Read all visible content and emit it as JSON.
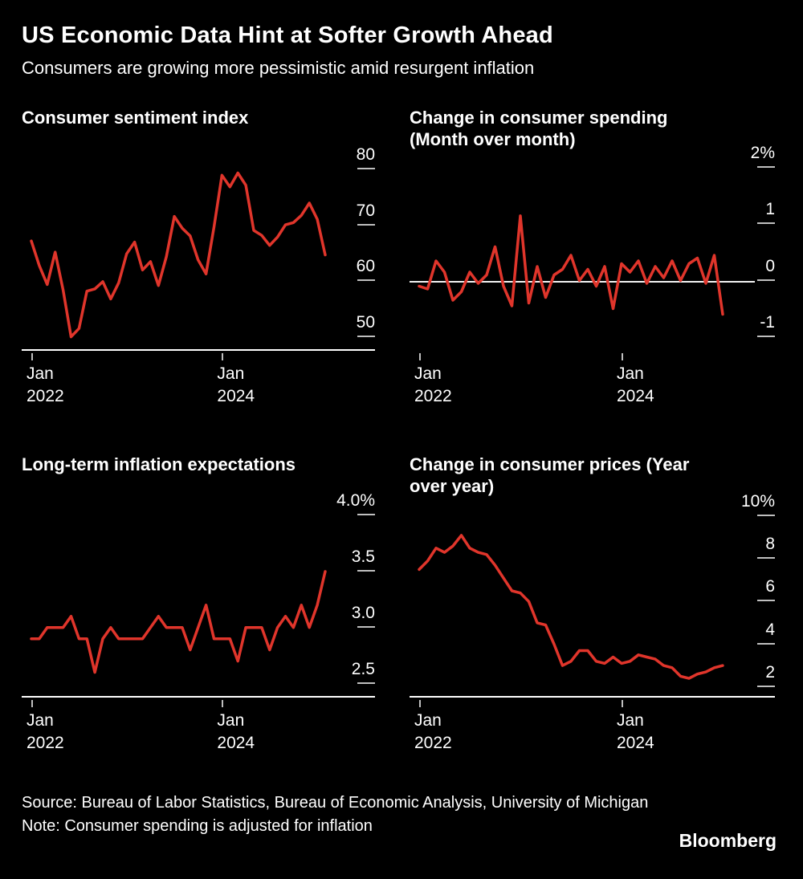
{
  "header": {
    "title": "US Economic Data Hint at Softer Growth Ahead",
    "subtitle": "Consumers are growing more pessimistic amid resurgent inflation"
  },
  "colors": {
    "background": "#000000",
    "line": "#E0352B",
    "text": "#FFFFFF",
    "axis": "#FFFFFF",
    "tick_mark": "#BFBFBF"
  },
  "chart_data": [
    {
      "type": "line",
      "title": "Consumer sentiment index",
      "title_lines": [
        "Consumer sentiment index"
      ],
      "x_start": "Jan 2022",
      "x_frequency": "monthly",
      "ylim": [
        47.5,
        83.5
      ],
      "baseline": true,
      "zero_line": false,
      "y_ticks": [
        {
          "label": "80",
          "value": 80
        },
        {
          "label": "70",
          "value": 70
        },
        {
          "label": "60",
          "value": 60
        },
        {
          "label": "50",
          "value": 50
        }
      ],
      "x_ticks": [
        {
          "line1": "Jan",
          "line2": "2022",
          "month_index": 0
        },
        {
          "line1": "Jan",
          "line2": "2024",
          "month_index": 24
        }
      ],
      "values": [
        67.2,
        62.8,
        59.4,
        65.2,
        58.4,
        50.0,
        51.5,
        58.2,
        58.6,
        59.9,
        56.8,
        59.7,
        64.9,
        67.0,
        62.0,
        63.5,
        59.2,
        64.4,
        71.6,
        69.5,
        68.1,
        63.8,
        61.3,
        69.7,
        79.0,
        76.9,
        79.4,
        77.2,
        69.1,
        68.2,
        66.4,
        67.9,
        70.1,
        70.5,
        71.8,
        74.0,
        71.1,
        64.7
      ]
    },
    {
      "type": "line",
      "title": "Change in consumer spending (Month over month)",
      "title_lines": [
        "Change in consumer spending",
        "(Month over month)"
      ],
      "x_start": "Jan 2022",
      "x_frequency": "monthly",
      "ylim": [
        -1.25,
        2.32
      ],
      "baseline": false,
      "zero_line": true,
      "y_ticks": [
        {
          "label": "2%",
          "value": 2
        },
        {
          "label": "1",
          "value": 1
        },
        {
          "label": "0",
          "value": 0
        },
        {
          "label": "-1",
          "value": -1
        }
      ],
      "x_ticks": [
        {
          "line1": "Jan",
          "line2": "2022",
          "month_index": 0
        },
        {
          "line1": "Jan",
          "line2": "2024",
          "month_index": 24
        }
      ],
      "values": [
        -0.1,
        -0.15,
        0.35,
        0.15,
        -0.35,
        -0.2,
        0.15,
        -0.05,
        0.1,
        0.6,
        -0.1,
        -0.45,
        1.15,
        -0.4,
        0.25,
        -0.3,
        0.1,
        0.2,
        0.45,
        0.0,
        0.2,
        -0.1,
        0.25,
        -0.5,
        0.3,
        0.15,
        0.35,
        -0.05,
        0.25,
        0.05,
        0.35,
        0.0,
        0.3,
        0.4,
        -0.05,
        0.45,
        -0.6
      ]
    },
    {
      "type": "line",
      "title": "Long-term inflation expectations",
      "title_lines": [
        "Long-term inflation expectations"
      ],
      "x_start": "Jan 2022",
      "x_frequency": "monthly",
      "ylim": [
        2.375,
        4.165
      ],
      "baseline": true,
      "zero_line": false,
      "y_ticks": [
        {
          "label": "4.0%",
          "value": 4.0
        },
        {
          "label": "3.5",
          "value": 3.5
        },
        {
          "label": "3.0",
          "value": 3.0
        },
        {
          "label": "2.5",
          "value": 2.5
        }
      ],
      "x_ticks": [
        {
          "line1": "Jan",
          "line2": "2022",
          "month_index": 0
        },
        {
          "line1": "Jan",
          "line2": "2024",
          "month_index": 24
        }
      ],
      "values": [
        2.9,
        2.9,
        3.0,
        3.0,
        3.0,
        3.1,
        2.9,
        2.9,
        2.6,
        2.9,
        3.0,
        2.9,
        2.9,
        2.9,
        2.9,
        3.0,
        3.1,
        3.0,
        3.0,
        3.0,
        2.8,
        3.0,
        3.2,
        2.9,
        2.9,
        2.9,
        2.7,
        3.0,
        3.0,
        3.0,
        2.8,
        3.0,
        3.1,
        3.0,
        3.2,
        3.0,
        3.2,
        3.5
      ]
    },
    {
      "type": "line",
      "title": "Change in consumer prices (Year over year)",
      "title_lines": [
        "Change in consumer prices (Year",
        "over year)"
      ],
      "x_start": "Jan 2022",
      "x_frequency": "monthly",
      "ylim": [
        1.5,
        10.9
      ],
      "baseline": true,
      "zero_line": false,
      "y_ticks": [
        {
          "label": "10%",
          "value": 10
        },
        {
          "label": "8",
          "value": 8
        },
        {
          "label": "6",
          "value": 6
        },
        {
          "label": "4",
          "value": 4
        },
        {
          "label": "2",
          "value": 2
        }
      ],
      "x_ticks": [
        {
          "line1": "Jan",
          "line2": "2022",
          "month_index": 0
        },
        {
          "line1": "Jan",
          "line2": "2024",
          "month_index": 24
        }
      ],
      "values": [
        7.5,
        7.9,
        8.5,
        8.3,
        8.6,
        9.1,
        8.5,
        8.3,
        8.2,
        7.7,
        7.1,
        6.5,
        6.4,
        6.0,
        5.0,
        4.9,
        4.0,
        3.0,
        3.2,
        3.7,
        3.7,
        3.2,
        3.1,
        3.4,
        3.1,
        3.2,
        3.5,
        3.4,
        3.3,
        3.0,
        2.9,
        2.5,
        2.4,
        2.6,
        2.7,
        2.9,
        3.0
      ]
    }
  ],
  "footer": {
    "source": "Source: Bureau of Labor Statistics, Bureau of Economic Analysis, University of Michigan",
    "note": "Note: Consumer spending is adjusted for inflation",
    "brand": "Bloomberg"
  }
}
